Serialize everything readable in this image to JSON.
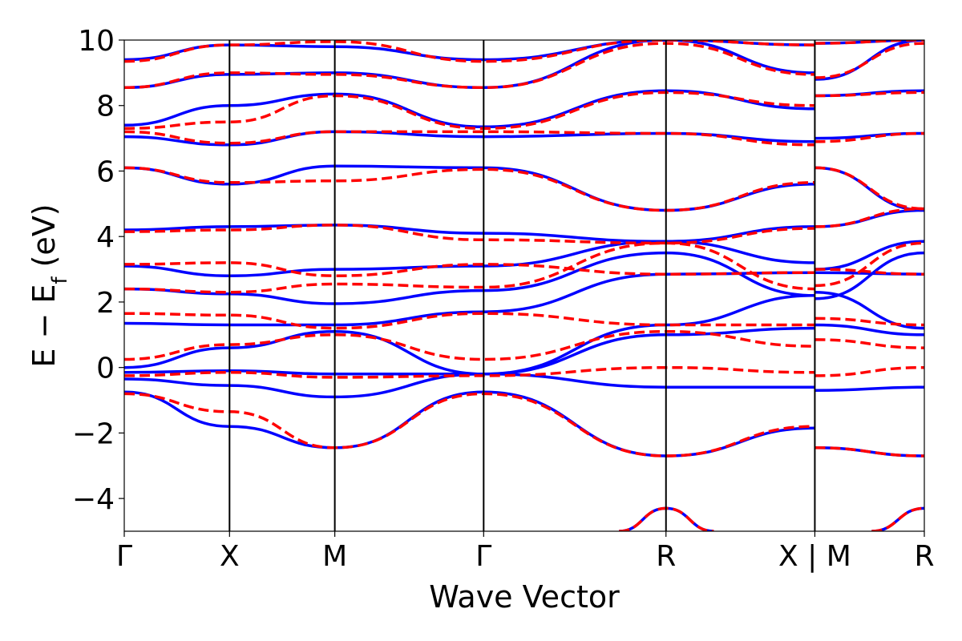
{
  "chart_data": {
    "type": "line",
    "title": "",
    "xlabel": "Wave Vector",
    "ylabel_main": "E − E",
    "ylabel_sub": "f",
    "ylabel_unit": " (eV)",
    "ylim": [
      -5,
      10
    ],
    "yticks": [
      -4,
      -2,
      0,
      2,
      4,
      6,
      8,
      10
    ],
    "ytick_labels": [
      "−4",
      "−2",
      "0",
      "2",
      "4",
      "6",
      "8",
      "10"
    ],
    "xlim": [
      0,
      7.6
    ],
    "kpoints": [
      {
        "x": 0.0,
        "label": "Γ"
      },
      {
        "x": 1.0,
        "label": "X"
      },
      {
        "x": 2.0,
        "label": "M"
      },
      {
        "x": 3.414,
        "label": "Γ"
      },
      {
        "x": 5.146,
        "label": "R"
      },
      {
        "x": 6.56,
        "label": "X | M"
      },
      {
        "x": 7.6,
        "label": "R"
      }
    ],
    "grid": false,
    "legend": "none",
    "series": [
      {
        "style": "solid",
        "color": "#0000ff",
        "bands": [
          [
            [
              0,
              -0.75
            ],
            [
              1,
              -1.8
            ],
            [
              2,
              -2.45
            ],
            [
              3.414,
              -0.75
            ],
            [
              5.146,
              -2.7
            ],
            [
              6.56,
              -1.85
            ],
            [
              6.56,
              -2.45
            ],
            [
              7.6,
              -2.7
            ]
          ],
          [
            [
              0,
              -0.35
            ],
            [
              1,
              -0.55
            ],
            [
              2,
              -0.9
            ],
            [
              3.414,
              -0.2
            ],
            [
              5.146,
              -0.6
            ],
            [
              6.56,
              -0.6
            ],
            [
              6.56,
              -0.7
            ],
            [
              7.6,
              -0.6
            ]
          ],
          [
            [
              0,
              -0.15
            ],
            [
              1,
              -0.1
            ],
            [
              2,
              -0.2
            ],
            [
              3.414,
              -0.2
            ],
            [
              5.146,
              1.0
            ],
            [
              6.56,
              1.2
            ],
            [
              6.56,
              1.3
            ],
            [
              7.6,
              1.0
            ]
          ],
          [
            [
              0,
              0.0
            ],
            [
              1,
              0.6
            ],
            [
              2,
              1.1
            ],
            [
              3.414,
              -0.2
            ],
            [
              5.146,
              1.3
            ],
            [
              6.56,
              2.2
            ],
            [
              6.56,
              2.1
            ],
            [
              7.6,
              3.5
            ]
          ],
          [
            [
              0,
              1.35
            ],
            [
              1,
              1.3
            ],
            [
              2,
              1.3
            ],
            [
              3.414,
              1.7
            ],
            [
              5.146,
              2.85
            ],
            [
              6.56,
              2.9
            ],
            [
              6.56,
              2.9
            ],
            [
              7.6,
              2.85
            ]
          ],
          [
            [
              0,
              2.4
            ],
            [
              1,
              2.25
            ],
            [
              2,
              1.95
            ],
            [
              3.414,
              2.35
            ],
            [
              5.146,
              3.5
            ],
            [
              6.56,
              2.2
            ],
            [
              6.56,
              2.3
            ],
            [
              7.6,
              1.2
            ]
          ],
          [
            [
              0,
              3.1
            ],
            [
              1,
              2.8
            ],
            [
              2,
              3.0
            ],
            [
              3.414,
              3.1
            ],
            [
              5.146,
              3.85
            ],
            [
              6.56,
              3.2
            ],
            [
              6.56,
              3.0
            ],
            [
              7.6,
              3.85
            ]
          ],
          [
            [
              0,
              4.2
            ],
            [
              1,
              4.3
            ],
            [
              2,
              4.35
            ],
            [
              3.414,
              4.1
            ],
            [
              5.146,
              3.85
            ],
            [
              6.56,
              4.3
            ],
            [
              6.56,
              4.3
            ],
            [
              7.6,
              4.8
            ]
          ],
          [
            [
              0,
              6.1
            ],
            [
              1,
              5.6
            ],
            [
              2,
              6.15
            ],
            [
              3.414,
              6.1
            ],
            [
              5.146,
              4.8
            ],
            [
              6.56,
              5.6
            ],
            [
              6.56,
              6.1
            ],
            [
              7.6,
              4.8
            ]
          ],
          [
            [
              0,
              7.05
            ],
            [
              1,
              6.8
            ],
            [
              2,
              7.2
            ],
            [
              3.414,
              7.05
            ],
            [
              5.146,
              7.15
            ],
            [
              6.56,
              6.9
            ],
            [
              6.56,
              7.0
            ],
            [
              7.6,
              7.15
            ]
          ],
          [
            [
              0,
              7.4
            ],
            [
              1,
              8.0
            ],
            [
              2,
              8.35
            ],
            [
              3.414,
              7.35
            ],
            [
              5.146,
              8.45
            ],
            [
              6.56,
              7.9
            ],
            [
              6.56,
              8.3
            ],
            [
              7.6,
              8.45
            ]
          ],
          [
            [
              0,
              8.55
            ],
            [
              1,
              8.95
            ],
            [
              2,
              9.0
            ],
            [
              3.414,
              8.55
            ],
            [
              5.146,
              10.0
            ],
            [
              6.56,
              9.0
            ],
            [
              6.56,
              8.8
            ],
            [
              7.6,
              10.0
            ]
          ],
          [
            [
              0,
              9.4
            ],
            [
              1,
              9.85
            ],
            [
              2,
              9.8
            ],
            [
              3.414,
              9.4
            ],
            [
              5.146,
              10.0
            ],
            [
              6.56,
              9.85
            ],
            [
              6.56,
              9.9
            ],
            [
              7.6,
              10.0
            ]
          ],
          [
            [
              4.7,
              -5.0
            ],
            [
              5.146,
              -4.3
            ],
            [
              5.6,
              -5.0
            ]
          ],
          [
            [
              7.1,
              -5.0
            ],
            [
              7.6,
              -4.3
            ]
          ]
        ]
      },
      {
        "style": "dashed",
        "color": "#ff0000",
        "bands": [
          [
            [
              0,
              -0.8
            ],
            [
              1,
              -1.35
            ],
            [
              2,
              -2.45
            ],
            [
              3.414,
              -0.8
            ],
            [
              5.146,
              -2.7
            ],
            [
              6.56,
              -1.8
            ],
            [
              6.56,
              -2.45
            ],
            [
              7.6,
              -2.7
            ]
          ],
          [
            [
              0,
              -0.25
            ],
            [
              1,
              -0.15
            ],
            [
              2,
              -0.3
            ],
            [
              3.414,
              -0.25
            ],
            [
              5.146,
              0.0
            ],
            [
              6.56,
              -0.15
            ],
            [
              6.56,
              -0.25
            ],
            [
              7.6,
              0.0
            ]
          ],
          [
            [
              0,
              0.25
            ],
            [
              1,
              0.7
            ],
            [
              2,
              1.0
            ],
            [
              3.414,
              0.25
            ],
            [
              5.146,
              1.1
            ],
            [
              6.56,
              0.65
            ],
            [
              6.56,
              0.85
            ],
            [
              7.6,
              0.6
            ]
          ],
          [
            [
              0,
              1.65
            ],
            [
              1,
              1.6
            ],
            [
              2,
              1.2
            ],
            [
              3.414,
              1.65
            ],
            [
              5.146,
              1.3
            ],
            [
              6.56,
              1.3
            ],
            [
              6.56,
              1.5
            ],
            [
              7.6,
              1.3
            ]
          ],
          [
            [
              0,
              2.4
            ],
            [
              1,
              2.3
            ],
            [
              2,
              2.55
            ],
            [
              3.414,
              2.45
            ],
            [
              5.146,
              3.8
            ],
            [
              6.56,
              2.4
            ],
            [
              6.56,
              2.5
            ],
            [
              7.6,
              3.8
            ]
          ],
          [
            [
              0,
              3.15
            ],
            [
              1,
              3.2
            ],
            [
              2,
              2.8
            ],
            [
              3.414,
              3.15
            ],
            [
              5.146,
              2.85
            ],
            [
              6.56,
              2.9
            ],
            [
              6.56,
              3.0
            ],
            [
              7.6,
              2.85
            ]
          ],
          [
            [
              0,
              4.15
            ],
            [
              1,
              4.2
            ],
            [
              2,
              4.35
            ],
            [
              3.414,
              3.9
            ],
            [
              5.146,
              3.8
            ],
            [
              6.56,
              4.25
            ],
            [
              6.56,
              4.3
            ],
            [
              7.6,
              4.85
            ]
          ],
          [
            [
              0,
              6.1
            ],
            [
              1,
              5.65
            ],
            [
              2,
              5.7
            ],
            [
              3.414,
              6.05
            ],
            [
              5.146,
              4.8
            ],
            [
              6.56,
              5.65
            ],
            [
              6.56,
              6.1
            ],
            [
              7.6,
              4.85
            ]
          ],
          [
            [
              0,
              7.2
            ],
            [
              1,
              6.85
            ],
            [
              2,
              7.2
            ],
            [
              3.414,
              7.2
            ],
            [
              5.146,
              7.15
            ],
            [
              6.56,
              6.8
            ],
            [
              6.56,
              6.9
            ],
            [
              7.6,
              7.15
            ]
          ],
          [
            [
              0,
              7.3
            ],
            [
              1,
              7.5
            ],
            [
              2,
              8.3
            ],
            [
              3.414,
              7.3
            ],
            [
              5.146,
              8.4
            ],
            [
              6.56,
              8.0
            ],
            [
              6.56,
              8.3
            ],
            [
              7.6,
              8.4
            ]
          ],
          [
            [
              0,
              8.55
            ],
            [
              1,
              9.0
            ],
            [
              2,
              8.95
            ],
            [
              3.414,
              8.55
            ],
            [
              5.146,
              9.9
            ],
            [
              6.56,
              8.95
            ],
            [
              6.56,
              8.85
            ],
            [
              7.6,
              9.9
            ]
          ],
          [
            [
              0,
              9.35
            ],
            [
              1,
              9.85
            ],
            [
              2,
              9.95
            ],
            [
              3.414,
              9.35
            ],
            [
              5.146,
              10.0
            ],
            [
              6.56,
              9.85
            ],
            [
              6.56,
              9.9
            ],
            [
              7.6,
              10.0
            ]
          ],
          [
            [
              4.7,
              -5.0
            ],
            [
              5.146,
              -4.3
            ],
            [
              5.6,
              -5.0
            ]
          ],
          [
            [
              7.1,
              -5.0
            ],
            [
              7.6,
              -4.3
            ]
          ]
        ]
      }
    ]
  }
}
